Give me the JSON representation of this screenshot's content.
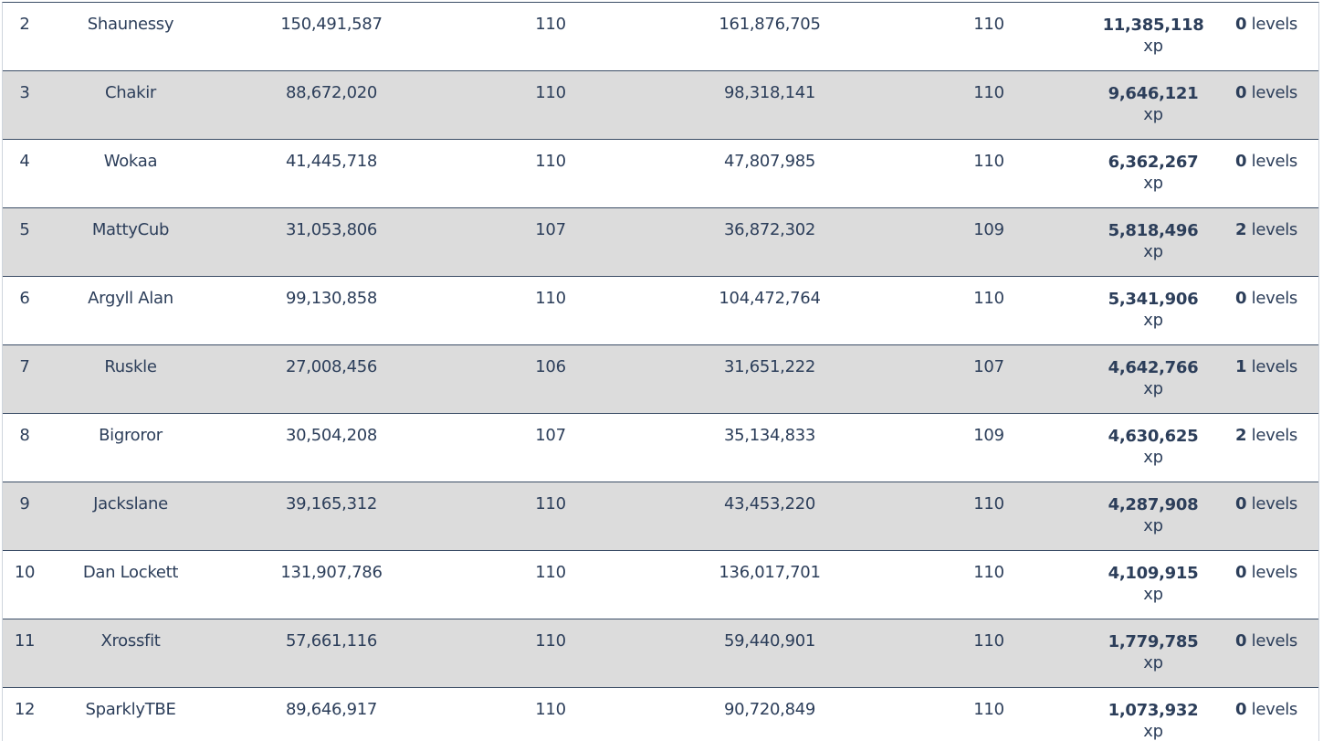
{
  "xp_unit": "xp",
  "levels_unit": "levels",
  "rows": [
    {
      "rank": "2",
      "name": "Shaunessy",
      "start_xp": "150,491,587",
      "start_level": "110",
      "end_xp": "161,876,705",
      "end_level": "110",
      "xp_gained": "11,385,118",
      "levels_gained": "0"
    },
    {
      "rank": "3",
      "name": "Chakir",
      "start_xp": "88,672,020",
      "start_level": "110",
      "end_xp": "98,318,141",
      "end_level": "110",
      "xp_gained": "9,646,121",
      "levels_gained": "0"
    },
    {
      "rank": "4",
      "name": "Wokaa",
      "start_xp": "41,445,718",
      "start_level": "110",
      "end_xp": "47,807,985",
      "end_level": "110",
      "xp_gained": "6,362,267",
      "levels_gained": "0"
    },
    {
      "rank": "5",
      "name": "MattyCub",
      "start_xp": "31,053,806",
      "start_level": "107",
      "end_xp": "36,872,302",
      "end_level": "109",
      "xp_gained": "5,818,496",
      "levels_gained": "2"
    },
    {
      "rank": "6",
      "name": "Argyll Alan",
      "start_xp": "99,130,858",
      "start_level": "110",
      "end_xp": "104,472,764",
      "end_level": "110",
      "xp_gained": "5,341,906",
      "levels_gained": "0"
    },
    {
      "rank": "7",
      "name": "Ruskle",
      "start_xp": "27,008,456",
      "start_level": "106",
      "end_xp": "31,651,222",
      "end_level": "107",
      "xp_gained": "4,642,766",
      "levels_gained": "1"
    },
    {
      "rank": "8",
      "name": "Bigroror",
      "start_xp": "30,504,208",
      "start_level": "107",
      "end_xp": "35,134,833",
      "end_level": "109",
      "xp_gained": "4,630,625",
      "levels_gained": "2"
    },
    {
      "rank": "9",
      "name": "Jackslane",
      "start_xp": "39,165,312",
      "start_level": "110",
      "end_xp": "43,453,220",
      "end_level": "110",
      "xp_gained": "4,287,908",
      "levels_gained": "0"
    },
    {
      "rank": "10",
      "name": "Dan Lockett",
      "start_xp": "131,907,786",
      "start_level": "110",
      "end_xp": "136,017,701",
      "end_level": "110",
      "xp_gained": "4,109,915",
      "levels_gained": "0"
    },
    {
      "rank": "11",
      "name": "Xrossfit",
      "start_xp": "57,661,116",
      "start_level": "110",
      "end_xp": "59,440,901",
      "end_level": "110",
      "xp_gained": "1,779,785",
      "levels_gained": "0"
    },
    {
      "rank": "12",
      "name": "SparklyTBE",
      "start_xp": "89,646,917",
      "start_level": "110",
      "end_xp": "90,720,849",
      "end_level": "110",
      "xp_gained": "1,073,932",
      "levels_gained": "0"
    }
  ]
}
